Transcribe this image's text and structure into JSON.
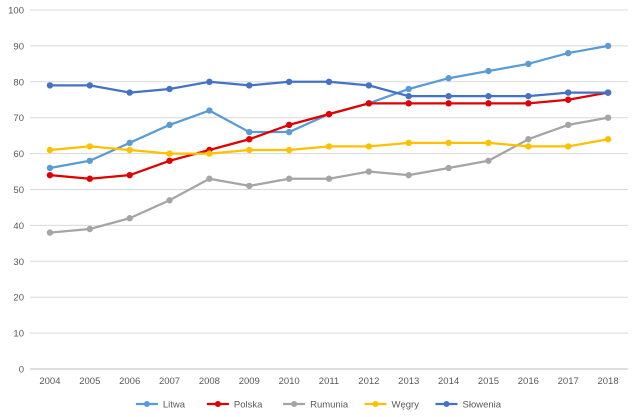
{
  "chart_data": {
    "type": "line",
    "title": "",
    "xlabel": "",
    "ylabel": "",
    "x": [
      "2004",
      "2005",
      "2006",
      "2007",
      "2008",
      "2009",
      "2010",
      "2011",
      "2012",
      "2013",
      "2014",
      "2015",
      "2016",
      "2017",
      "2018"
    ],
    "ylim": [
      0,
      100
    ],
    "yticks": [
      "0",
      "10",
      "20",
      "30",
      "40",
      "50",
      "60",
      "70",
      "80",
      "90",
      "100"
    ],
    "grid": true,
    "legend_position": "bottom",
    "series": [
      {
        "name": "Litwa",
        "color": "#5b9bd5",
        "values": [
          56,
          58,
          63,
          68,
          72,
          66,
          66,
          71,
          74,
          78,
          81,
          83,
          85,
          88,
          90
        ]
      },
      {
        "name": "Polska",
        "color": "#e00000",
        "values": [
          54,
          53,
          54,
          58,
          61,
          64,
          68,
          71,
          74,
          74,
          74,
          74,
          74,
          75,
          77
        ]
      },
      {
        "name": "Rumunia",
        "color": "#a5a5a5",
        "values": [
          38,
          39,
          42,
          47,
          53,
          51,
          53,
          53,
          55,
          54,
          56,
          58,
          64,
          68,
          70
        ]
      },
      {
        "name": "Węgry",
        "color": "#ffc000",
        "values": [
          61,
          62,
          61,
          60,
          60,
          61,
          61,
          62,
          62,
          63,
          63,
          63,
          62,
          62,
          64
        ]
      },
      {
        "name": "Słowenia",
        "color": "#4472c4",
        "values": [
          79,
          79,
          77,
          78,
          80,
          79,
          80,
          80,
          79,
          76,
          76,
          76,
          76,
          77,
          77
        ]
      }
    ]
  }
}
